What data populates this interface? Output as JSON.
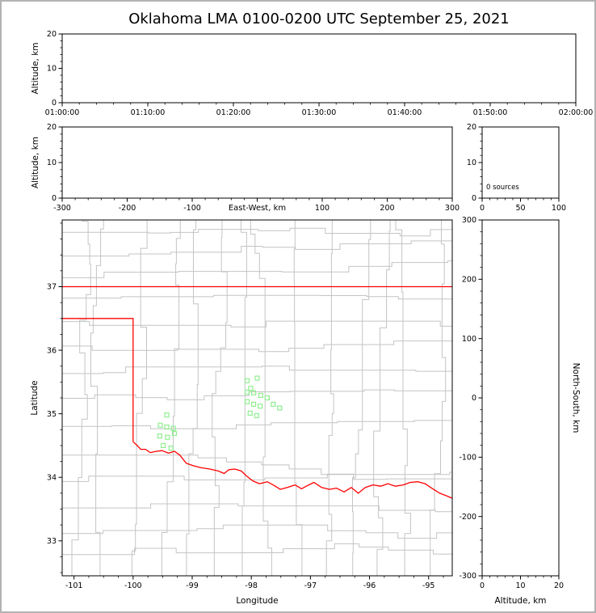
{
  "title": "Oklahoma LMA 0100-0200 UTC September 25, 2021",
  "colors": {
    "background": "#ffffff",
    "figure_border": "#b3b3b3",
    "frame": "#000000",
    "text": "#000000",
    "county_lines": "#c4c4c4",
    "state_border": "#ff0000",
    "station_marker": "#90ee90"
  },
  "chart_data": [
    {
      "id": "time-height",
      "type": "scatter",
      "title": "",
      "ylabel": "Altitude, km",
      "x": {
        "min": 0,
        "max": 60,
        "tick_values": [
          0,
          10,
          20,
          30,
          40,
          50,
          60
        ],
        "tick_labels": [
          "01:00:00",
          "01:10:00",
          "01:20:00",
          "01:30:00",
          "01:40:00",
          "01:50:00",
          "02:00:00"
        ],
        "minor_step": 2
      },
      "y": {
        "min": 0,
        "max": 20,
        "tick_values": [
          0,
          10,
          20
        ],
        "tick_labels": [
          "0",
          "10",
          "20"
        ],
        "minor_step": 2
      },
      "points": []
    },
    {
      "id": "ew-height",
      "type": "scatter",
      "xlabel": "East-West, km",
      "ylabel": "Altitude, km",
      "x": {
        "min": -300,
        "max": 300,
        "tick_values": [
          -300,
          -200,
          -100,
          0,
          100,
          200,
          300
        ],
        "tick_labels": [
          "-300",
          "-200",
          "-100",
          "",
          "100",
          "200",
          "300"
        ],
        "minor_step": 20
      },
      "y": {
        "min": 0,
        "max": 20,
        "tick_values": [
          0,
          10,
          20
        ],
        "tick_labels": [
          "0",
          "10",
          "20"
        ],
        "minor_step": 2
      },
      "points": []
    },
    {
      "id": "altitude-histogram",
      "type": "line",
      "annotation": "0 sources",
      "x": {
        "min": 0,
        "max": 100,
        "tick_values": [
          0,
          50,
          100
        ],
        "tick_labels": [
          "0",
          "50",
          "100"
        ],
        "minor_step": 10
      },
      "y": {
        "min": 0,
        "max": 20,
        "tick_values": [
          0,
          10,
          20
        ],
        "tick_labels": [
          "0",
          "10",
          "20"
        ],
        "minor_step": 2
      },
      "points": []
    },
    {
      "id": "plan-view-map",
      "type": "scatter",
      "xlabel": "Longitude",
      "ylabel": "Latitude",
      "x": {
        "min": -101.2,
        "max": -94.6,
        "tick_values": [
          -101,
          -100,
          -99,
          -98,
          -97,
          -96,
          -95
        ],
        "tick_labels": [
          "-101",
          "-100",
          "-99",
          "-98",
          "-97",
          "-96",
          "-95"
        ],
        "minor_step": 0.25
      },
      "y": {
        "min": 32.45,
        "max": 38.05,
        "tick_values": [
          33,
          34,
          35,
          36,
          37
        ],
        "tick_labels": [
          "33",
          "34",
          "35",
          "36",
          "37"
        ],
        "minor_step": 0.25
      },
      "state_borders": [
        [
          [
            -101.2,
            37.0
          ],
          [
            -94.6,
            37.0
          ]
        ],
        [
          [
            -101.2,
            36.5
          ],
          [
            -100.0,
            36.5
          ],
          [
            -100.0,
            34.56
          ]
        ],
        [
          [
            -100.0,
            34.56
          ],
          [
            -99.93,
            34.5
          ],
          [
            -99.87,
            34.44
          ],
          [
            -99.79,
            34.44
          ],
          [
            -99.71,
            34.39
          ],
          [
            -99.6,
            34.41
          ],
          [
            -99.51,
            34.42
          ],
          [
            -99.4,
            34.38
          ],
          [
            -99.3,
            34.41
          ],
          [
            -99.21,
            34.35
          ],
          [
            -99.1,
            34.22
          ],
          [
            -98.97,
            34.18
          ],
          [
            -98.85,
            34.15
          ],
          [
            -98.7,
            34.13
          ],
          [
            -98.56,
            34.1
          ],
          [
            -98.46,
            34.06
          ],
          [
            -98.38,
            34.12
          ],
          [
            -98.28,
            34.13
          ],
          [
            -98.17,
            34.1
          ],
          [
            -98.08,
            34.02
          ],
          [
            -97.97,
            33.94
          ],
          [
            -97.86,
            33.9
          ],
          [
            -97.73,
            33.93
          ],
          [
            -97.61,
            33.87
          ],
          [
            -97.51,
            33.81
          ],
          [
            -97.39,
            33.84
          ],
          [
            -97.26,
            33.88
          ],
          [
            -97.15,
            33.82
          ],
          [
            -97.05,
            33.87
          ],
          [
            -96.94,
            33.92
          ],
          [
            -96.81,
            33.84
          ],
          [
            -96.68,
            33.81
          ],
          [
            -96.56,
            33.83
          ],
          [
            -96.43,
            33.77
          ],
          [
            -96.31,
            33.84
          ],
          [
            -96.19,
            33.75
          ],
          [
            -96.07,
            33.84
          ],
          [
            -95.94,
            33.88
          ],
          [
            -95.81,
            33.86
          ],
          [
            -95.69,
            33.9
          ],
          [
            -95.56,
            33.86
          ],
          [
            -95.43,
            33.88
          ],
          [
            -95.31,
            33.92
          ],
          [
            -95.18,
            33.93
          ],
          [
            -95.06,
            33.9
          ],
          [
            -94.93,
            33.82
          ],
          [
            -94.81,
            33.75
          ],
          [
            -94.7,
            33.71
          ],
          [
            -94.6,
            33.67
          ]
        ]
      ],
      "stations": [
        [
          -98.07,
          35.52
        ],
        [
          -97.9,
          35.56
        ],
        [
          -98.01,
          35.4
        ],
        [
          -98.07,
          35.34
        ],
        [
          -97.96,
          35.33
        ],
        [
          -97.84,
          35.29
        ],
        [
          -97.73,
          35.25
        ],
        [
          -98.07,
          35.19
        ],
        [
          -97.96,
          35.15
        ],
        [
          -97.85,
          35.12
        ],
        [
          -97.63,
          35.15
        ],
        [
          -97.52,
          35.09
        ],
        [
          -98.02,
          35.01
        ],
        [
          -97.91,
          34.97
        ],
        [
          -99.43,
          34.98
        ],
        [
          -99.54,
          34.82
        ],
        [
          -99.43,
          34.79
        ],
        [
          -99.32,
          34.77
        ],
        [
          -99.55,
          34.65
        ],
        [
          -99.42,
          34.63
        ],
        [
          -99.3,
          34.69
        ],
        [
          -99.49,
          34.5
        ],
        [
          -99.36,
          34.46
        ]
      ]
    },
    {
      "id": "ns-height",
      "type": "scatter",
      "xlabel": "Altitude, km",
      "ylabel_right": "North-South, km",
      "x": {
        "min": 0,
        "max": 20,
        "tick_values": [
          0,
          10,
          20
        ],
        "tick_labels": [
          "0",
          "10",
          "20"
        ],
        "minor_step": 2
      },
      "y": {
        "min": -300,
        "max": 300,
        "tick_values": [
          -300,
          -200,
          -100,
          0,
          100,
          200,
          300
        ],
        "tick_labels": [
          "-300",
          "-200",
          "-100",
          "0",
          "100",
          "200",
          "300"
        ],
        "minor_step": 20
      },
      "points": []
    }
  ]
}
